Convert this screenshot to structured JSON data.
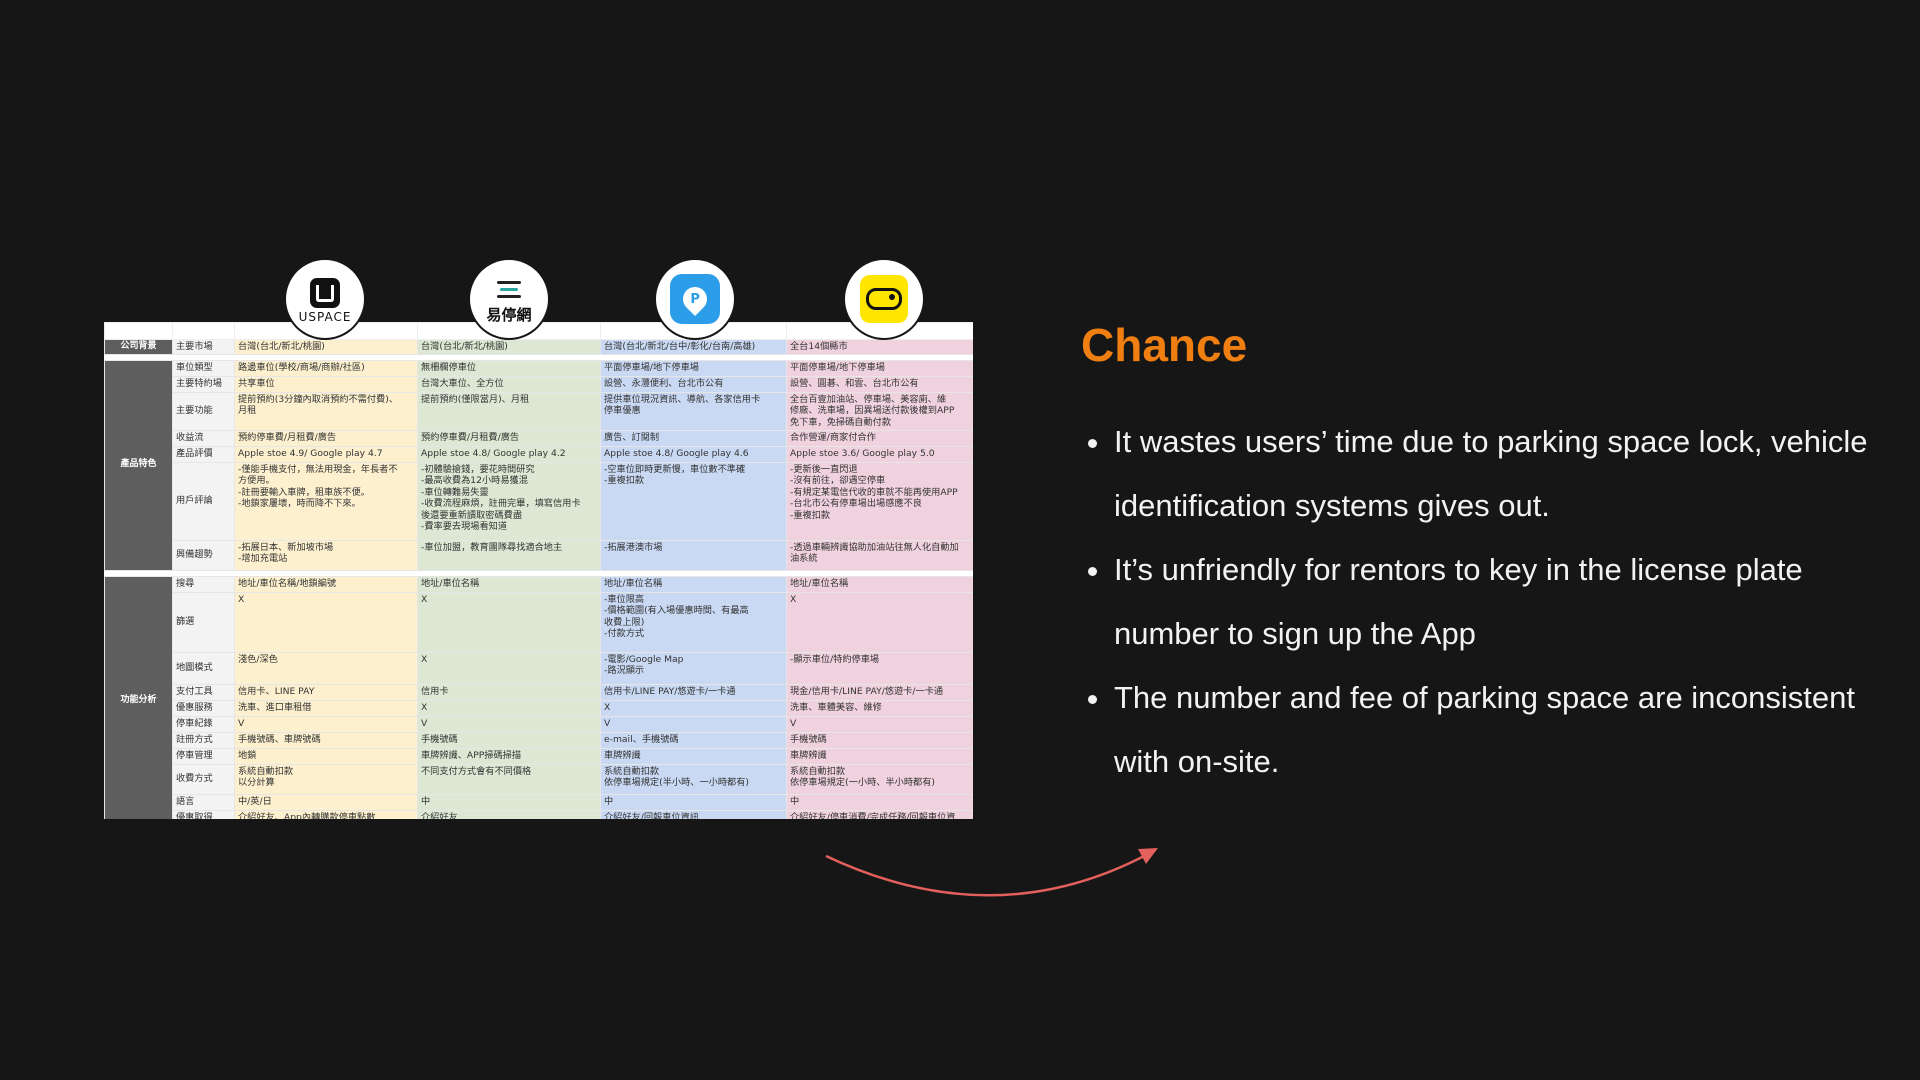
{
  "logos": {
    "uspace": {
      "name": "USPACE",
      "icon": "uspace-logo"
    },
    "yitingwang": {
      "name": "易停網",
      "icon": "yitingwang-logo"
    },
    "parking_pin": {
      "icon": "parking-pin-logo",
      "color": "#2b9de9"
    },
    "yellow_car": {
      "icon": "car-logo",
      "color": "#ffe600"
    }
  },
  "table": {
    "sections": {
      "company": "公司背景",
      "product": "產品特色",
      "function": "功能分析"
    },
    "rows": [
      {
        "label": "主要市場",
        "c1": "台灣(台北/新北/桃園)",
        "c2": "台灣(台北/新北/桃園)",
        "c3": "台灣(台北/新北/台中/彰化/台南/高雄)",
        "c4": "全台14個縣市"
      },
      {
        "label": "車位類型",
        "c1": "路邊車位(學校/商場/商辦/社區)",
        "c2": "無柵欄停車位",
        "c3": "平面停車場/地下停車場",
        "c4": "平面停車場/地下停車場"
      },
      {
        "label": "主要特約場",
        "c1": "共享車位",
        "c2": "台灣大車位、全方位",
        "c3": "設營、永灃便利、台北市公有",
        "c4": "設營、圓碁、和雲、台北市公有"
      },
      {
        "label": "主要功能",
        "c1": "提前預約(3分鐘內取消預約不需付費)、\n月租",
        "c2": "提前預約(僅限當月)、月租",
        "c3": "提供車位現況資訊、導航、各家信用卡\n停車優惠",
        "c4": "全台百壹加油站、停車場、美容廁、維\n修廠、洗車場，因異場送付款後權到APP\n免下車，免掃碼自動付款"
      },
      {
        "label": "收益流",
        "c1": "預約停車費/月租費/廣告",
        "c2": "預約停車費/月租費/廣告",
        "c3": "廣告、訂閱制",
        "c4": "合作營運/商家付合作"
      },
      {
        "label": "產品評價",
        "c1": "Apple stoe 4.9/ Google play 4.7",
        "c2": "Apple stoe 4.8/ Google play 4.2",
        "c3": "Apple stoe 4.8/ Google play 4.6",
        "c4": "Apple stoe 3.6/ Google play 5.0"
      },
      {
        "label": "用戶評論",
        "c1": "-僅能手機支付，無法用現金，年長者不\n方便用。\n-註冊要輸入車牌，租車族不便。\n-地鎖家屢壞，時而降不下來。",
        "c2": "-初體驗搶錢，要花時間研究\n-最高收費為12小時易獲混\n-車位轉難易失靈\n-收費流程麻煩，註冊完畢，填寫信用卡\n後還要重新讀取密碼費盡\n-費率要去現場看知道",
        "c3": "-空車位即時更新慢，車位數不準確\n-重複扣款",
        "c4": "-更新後一直閃退\n-沒有前往，卻遇空停車\n-有規定某電信代收的車就不能再使用APP\n-台北市公有停車場出場感應不良\n-重複扣款"
      },
      {
        "label": "興備趨勢",
        "c1": "-拓展日本、新加坡市場\n-增加充電站",
        "c2": "-車位加盟，教育團隊尋找適合地主",
        "c3": "-拓展港澳市場",
        "c4": "-透過車輛辨識協助加油站往無人化自動加\n油系統"
      },
      {
        "label": "搜尋",
        "c1": "地址/車位名稱/地鎖編號",
        "c2": "地址/車位名稱",
        "c3": "地址/車位名稱",
        "c4": "地址/車位名稱"
      },
      {
        "label": "篩選",
        "c1": "X",
        "c2": "X",
        "c3": "-車位限高\n-價格範圍(有入場優惠時間、有最高\n收費上限)\n-付款方式",
        "c4": "X"
      },
      {
        "label": "地圖模式",
        "c1": "淺色/深色",
        "c2": "X",
        "c3": "-電影/Google Map\n-路況顯示",
        "c4": "-顯示車位/特約停車場"
      },
      {
        "label": "支付工具",
        "c1": "信用卡、LINE PAY",
        "c2": "信用卡",
        "c3": "信用卡/LINE PAY/悠遊卡/一卡通",
        "c4": "現金/信用卡/LINE PAY/悠遊卡/一卡通"
      },
      {
        "label": "優惠服務",
        "c1": "洗車、進口車租借",
        "c2": "X",
        "c3": "X",
        "c4": "洗車、車體美容、維修"
      },
      {
        "label": "停車紀錄",
        "c1": "V",
        "c2": "V",
        "c3": "V",
        "c4": "V"
      },
      {
        "label": "註冊方式",
        "c1": "手機號碼、車牌號碼",
        "c2": "手機號碼",
        "c3": "e-mail、手機號碼",
        "c4": "手機號碼"
      },
      {
        "label": "停車管理",
        "c1": "地鎖",
        "c2": "車牌辨識、APP掃碼掃描",
        "c3": "車牌辨識",
        "c4": "車牌辨識"
      },
      {
        "label": "收費方式",
        "c1": "系統自動扣款\n以分計算",
        "c2": "不同支付方式會有不同價格",
        "c3": "系統自動扣款\n依停車場規定(半小時、一小時都有)",
        "c4": "系統自動扣款\n依停車場規定(一小時、半小時都有)"
      },
      {
        "label": "語言",
        "c1": "中/英/日",
        "c2": "中",
        "c3": "中",
        "c4": "中"
      },
      {
        "label": "優惠取得",
        "c1": "介紹好友、App內轉購款停車點數",
        "c2": "介紹好友",
        "c3": "介紹好友/回報車位資訊",
        "c4": "介紹好友/停車消費/完成任務/回報車位資"
      }
    ]
  },
  "chance": {
    "title": "Chance",
    "bullets": [
      "It wastes users’ time  due to parking space lock,  vehicle identification systems gives out.",
      "It’s unfriendly for rentors to key in the license plate number to sign up the App",
      "The number and fee of parking space  are inconsistent with on-site."
    ]
  },
  "colors": {
    "accent": "#f07f12",
    "arrow": "#e3605c",
    "col1": "#fdf0cf",
    "col2": "#dce8d3",
    "col3": "#c9d9f3",
    "col4": "#f0d2df"
  }
}
